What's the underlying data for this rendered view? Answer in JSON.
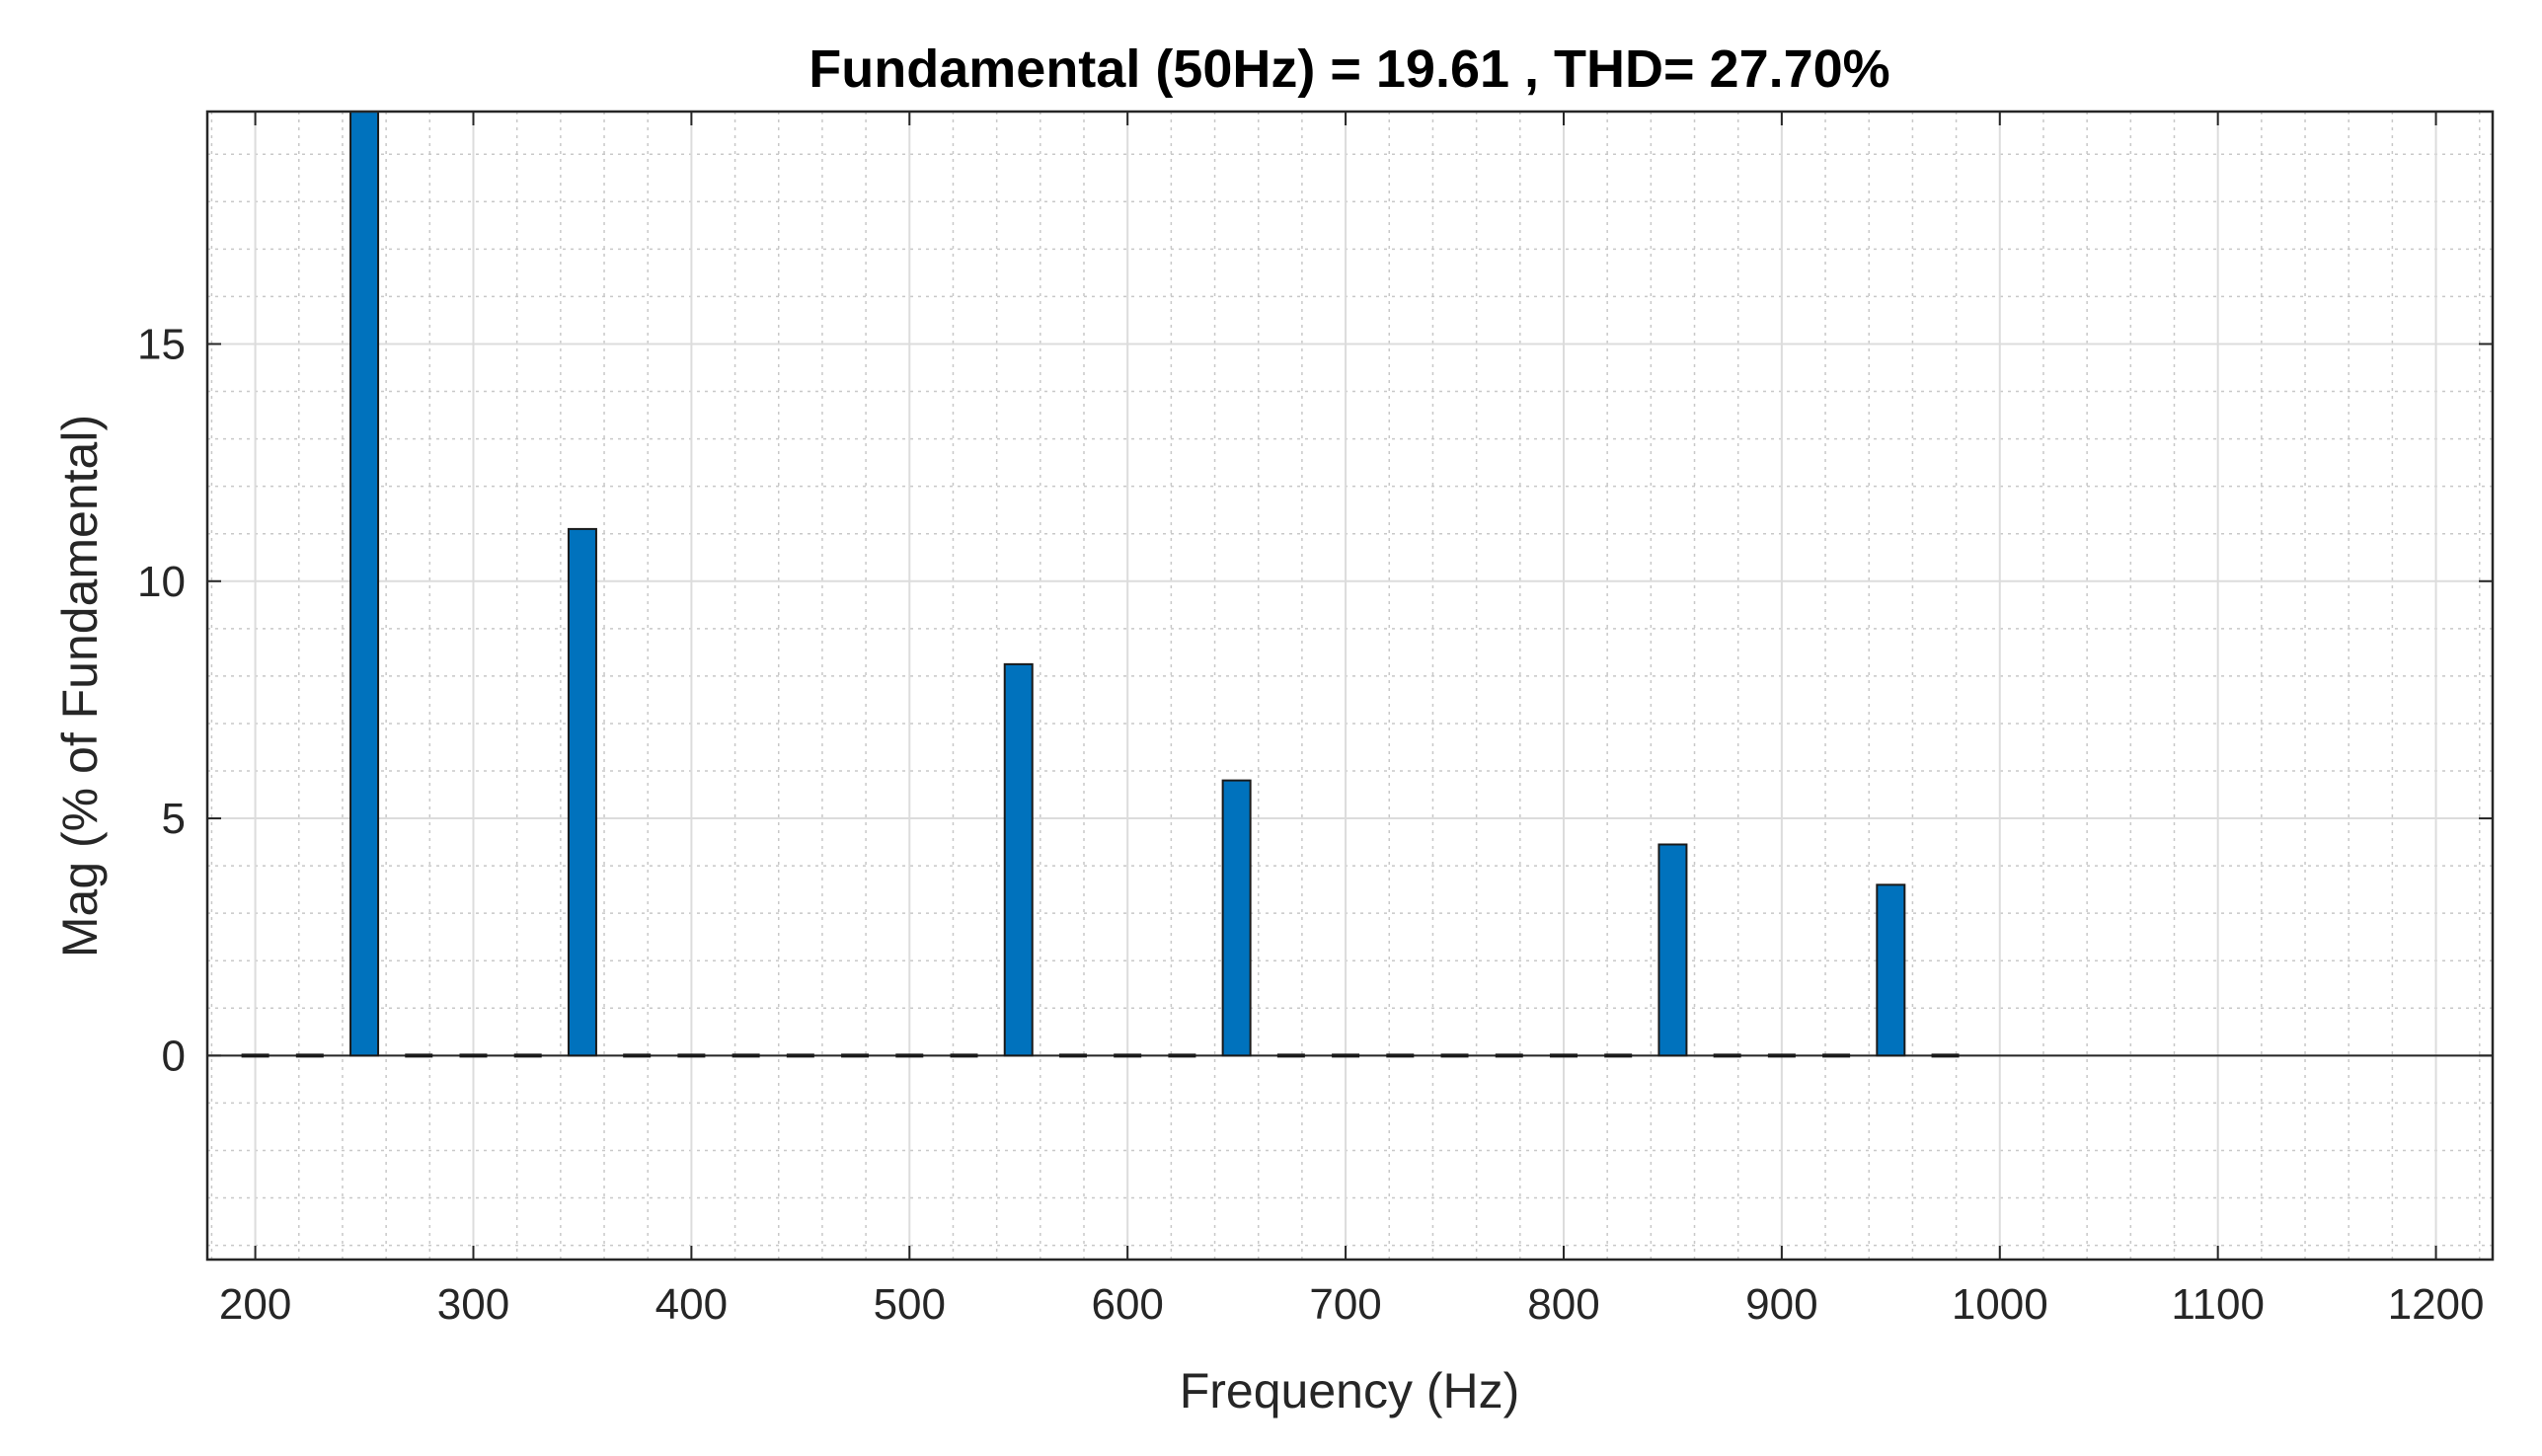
{
  "chart_data": {
    "type": "bar",
    "title": "Fundamental (50Hz) = 19.61 , THD= 27.70%",
    "xlabel": "Frequency (Hz)",
    "ylabel": "Mag (% of Fundamental)",
    "xlim": [
      178,
      1226
    ],
    "ylim": [
      -4.3,
      19.9
    ],
    "xticks": [
      200,
      300,
      400,
      500,
      600,
      700,
      800,
      900,
      1000,
      1100,
      1200
    ],
    "yticks": [
      0,
      5,
      10,
      15
    ],
    "grid": true,
    "minor_grid": true,
    "bar_color": "#0072BD",
    "x": [
      200,
      225,
      250,
      275,
      300,
      325,
      350,
      375,
      400,
      425,
      450,
      475,
      500,
      525,
      550,
      575,
      600,
      625,
      650,
      675,
      700,
      725,
      750,
      775,
      800,
      825,
      850,
      875,
      900,
      925,
      950,
      975
    ],
    "values": [
      0,
      0,
      20.0,
      0,
      0,
      0,
      11.1,
      0,
      0,
      0,
      0,
      0,
      0,
      0,
      8.25,
      0,
      0,
      0,
      5.8,
      0,
      0,
      0,
      0,
      0,
      0,
      0,
      4.45,
      0,
      0,
      0,
      3.6,
      0
    ]
  }
}
